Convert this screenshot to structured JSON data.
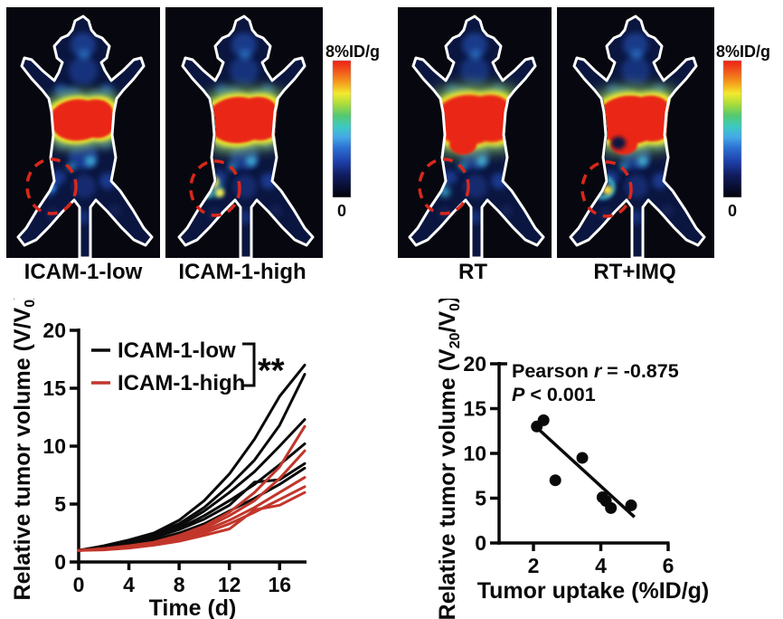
{
  "figure": {
    "panels": [
      {
        "label": "ICAM-1-low",
        "variant": "low"
      },
      {
        "label": "ICAM-1-high",
        "variant": "high"
      },
      {
        "label": "RT",
        "variant": "rt"
      },
      {
        "label": "RT+IMQ",
        "variant": "rtimq"
      }
    ],
    "colorbar": {
      "max_label": "8%ID/g",
      "min_label": "0"
    },
    "colors": {
      "red_line": "#c2362b",
      "dash_circle": "#d8281c",
      "black_line": "#0a0a0a"
    }
  },
  "chart_data": [
    {
      "type": "line",
      "title": "",
      "xlabel": "Time (d)",
      "ylabel": "Relative tumor volume (V/V0)",
      "ylabel_rich": [
        {
          "t": "Relative tumor volume (V/V"
        },
        {
          "t": "0",
          "sub": true
        },
        {
          "t": ")"
        }
      ],
      "xlim": [
        0,
        18
      ],
      "ylim": [
        0,
        20
      ],
      "xticks": [
        0,
        4,
        8,
        12,
        16
      ],
      "yticks": [
        0,
        5,
        10,
        15,
        20
      ],
      "grid": false,
      "legend_position": "top-left-inside",
      "significance": "**",
      "x": [
        0,
        2,
        4,
        6,
        8,
        10,
        12,
        14,
        16,
        18
      ],
      "legend": [
        {
          "label": "ICAM-1-low",
          "color": "#0a0a0a"
        },
        {
          "label": "ICAM-1-high",
          "color": "#c2362b"
        }
      ],
      "series": [
        {
          "name": "ICAM-1-low",
          "color": "#0a0a0a",
          "values": [
            1,
            1.4,
            1.9,
            2.5,
            3.6,
            5.3,
            7.6,
            10.6,
            14.3,
            17.0
          ]
        },
        {
          "name": "ICAM-1-low",
          "color": "#0a0a0a",
          "values": [
            1,
            1.35,
            1.8,
            2.4,
            3.3,
            4.7,
            6.6,
            8.8,
            11.8,
            16.2
          ]
        },
        {
          "name": "ICAM-1-low",
          "color": "#0a0a0a",
          "values": [
            1,
            1.3,
            1.75,
            2.3,
            3.1,
            4.4,
            6.0,
            7.8,
            10.0,
            12.3
          ]
        },
        {
          "name": "ICAM-1-low",
          "color": "#0a0a0a",
          "values": [
            1,
            1.3,
            1.7,
            2.2,
            2.9,
            4.0,
            5.3,
            6.7,
            8.4,
            10.2
          ]
        },
        {
          "name": "ICAM-1-low",
          "color": "#0a0a0a",
          "values": [
            1,
            1.25,
            1.6,
            2.1,
            2.8,
            3.7,
            4.9,
            6.9,
            7.1,
            8.5
          ]
        },
        {
          "name": "ICAM-1-low",
          "color": "#0a0a0a",
          "values": [
            1,
            1.2,
            1.5,
            1.9,
            2.5,
            3.3,
            4.4,
            5.5,
            6.7,
            8.1
          ]
        },
        {
          "name": "ICAM-1-high",
          "color": "#c2362b",
          "values": [
            1,
            1.15,
            1.4,
            1.7,
            2.3,
            3.1,
            4.3,
            6.0,
            8.2,
            11.7
          ]
        },
        {
          "name": "ICAM-1-high",
          "color": "#c2362b",
          "values": [
            1,
            1.15,
            1.35,
            1.65,
            2.2,
            2.9,
            4.0,
            5.3,
            7.2,
            9.6
          ]
        },
        {
          "name": "ICAM-1-high",
          "color": "#c2362b",
          "values": [
            1,
            1.1,
            1.3,
            1.6,
            2.1,
            2.7,
            3.6,
            4.7,
            6.0,
            7.3
          ]
        },
        {
          "name": "ICAM-1-high",
          "color": "#c2362b",
          "values": [
            1,
            1.1,
            1.25,
            1.5,
            1.95,
            2.5,
            3.3,
            4.3,
            5.4,
            6.5
          ]
        },
        {
          "name": "ICAM-1-high",
          "color": "#c2362b",
          "values": [
            1,
            1.05,
            1.2,
            1.45,
            1.8,
            2.3,
            2.85,
            4.5,
            4.9,
            6.0
          ]
        }
      ]
    },
    {
      "type": "scatter",
      "title": "",
      "xlabel": "Tumor uptake (%ID/g)",
      "ylabel": "Relative tumor volume (V20/V0)",
      "ylabel_rich": [
        {
          "t": "Relative tumor volume (V"
        },
        {
          "t": "20",
          "sub": true
        },
        {
          "t": "/V"
        },
        {
          "t": "0",
          "sub": true
        },
        {
          "t": ")"
        }
      ],
      "xlim": [
        1,
        6
      ],
      "ylim": [
        0,
        20
      ],
      "xticks": [
        2,
        4,
        6
      ],
      "yticks": [
        0,
        5,
        10,
        15,
        20
      ],
      "grid": false,
      "points": [
        [
          2.1,
          13.0
        ],
        [
          2.3,
          13.7
        ],
        [
          2.65,
          7.0
        ],
        [
          3.45,
          9.5
        ],
        [
          4.05,
          5.1
        ],
        [
          4.15,
          4.7
        ],
        [
          4.3,
          3.9
        ],
        [
          4.9,
          4.2
        ]
      ],
      "fit_line": {
        "x1": 2.15,
        "y1": 12.7,
        "x2": 5.0,
        "y2": 2.9
      },
      "annotation_line1": "Pearson r = -0.875",
      "annotation_line2": "P < 0.001",
      "annotation1_rich": [
        {
          "t": "Pearson "
        },
        {
          "t": "r",
          "i": true
        },
        {
          "t": " = -0.875"
        }
      ],
      "annotation2_rich": [
        {
          "t": "P",
          "i": true
        },
        {
          "t": " < 0.001"
        }
      ]
    }
  ]
}
